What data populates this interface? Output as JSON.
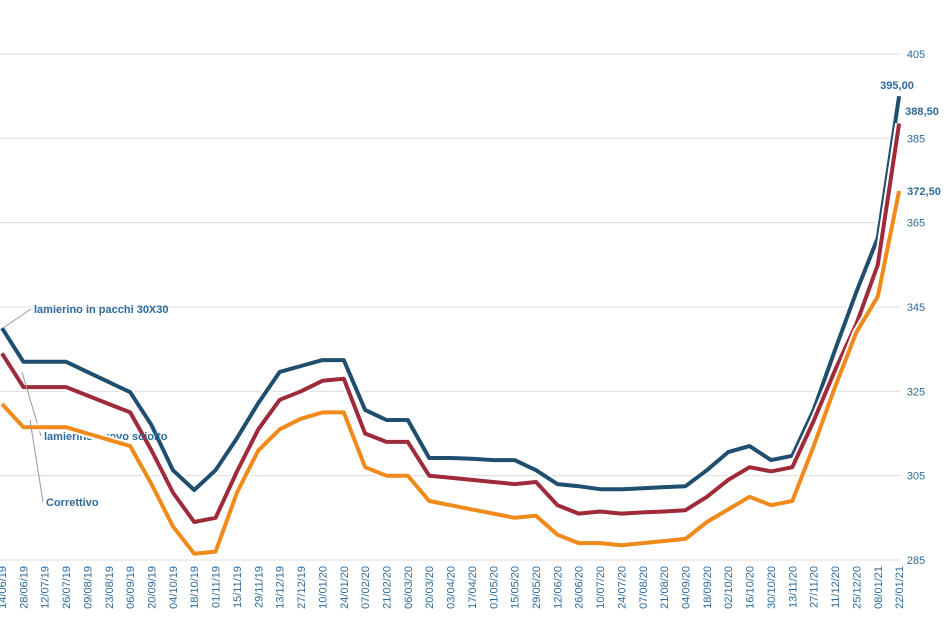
{
  "chart_data": {
    "type": "line",
    "categories": [
      "14/06/19",
      "28/06/19",
      "12/07/19",
      "26/07/19",
      "09/08/19",
      "23/08/19",
      "06/09/19",
      "20/09/19",
      "04/10/19",
      "18/10/19",
      "01/11/19",
      "15/11/19",
      "29/11/19",
      "13/12/19",
      "27/12/19",
      "10/01/20",
      "24/01/20",
      "07/02/20",
      "21/02/20",
      "06/03/20",
      "20/03/20",
      "03/04/20",
      "17/04/20",
      "01/05/20",
      "15/05/20",
      "29/05/20",
      "12/06/20",
      "26/06/20",
      "10/07/20",
      "24/07/20",
      "07/08/20",
      "21/08/20",
      "04/09/20",
      "18/09/20",
      "02/10/20",
      "16/10/20",
      "30/10/20",
      "13/11/20",
      "27/11/20",
      "11/12/20",
      "25/12/20",
      "08/01/21",
      "22/01/21"
    ],
    "series": [
      {
        "name": "lamierino in pacchi  30X30",
        "color": "#1f4e6e",
        "values": [
          340,
          332,
          332,
          332,
          329.6,
          327.2,
          324.8,
          317,
          306.3,
          301.6,
          306.3,
          313.9,
          322.2,
          329.6,
          331,
          332.4,
          332.4,
          320.6,
          318.2,
          318.2,
          309.2,
          309.2,
          309,
          308.7,
          308.7,
          306.3,
          303,
          302.5,
          301.8,
          301.8,
          302,
          302.3,
          302.5,
          306.3,
          310.6,
          312,
          308.7,
          309.7,
          320.6,
          334.8,
          348.6,
          361.4,
          395
        ],
        "value_labels": [
          null,
          null,
          null,
          null,
          null,
          null,
          null,
          null,
          null,
          null,
          null,
          null,
          null,
          null,
          null,
          null,
          null,
          null,
          null,
          null,
          null,
          null,
          null,
          null,
          null,
          null,
          null,
          null,
          null,
          null,
          null,
          null,
          null,
          null,
          null,
          null,
          null,
          null,
          null,
          null,
          null,
          null,
          "395,00"
        ]
      },
      {
        "name": "lamierino nuovo sciolto",
        "color": "#9e2a3a",
        "values": [
          334,
          326,
          326,
          326,
          324,
          322,
          320,
          311,
          301,
          294,
          295,
          306,
          316,
          323,
          325,
          327.5,
          328,
          315,
          313,
          313,
          305,
          304.5,
          304,
          303.5,
          303,
          303.5,
          298,
          296,
          296.5,
          296,
          296.3,
          296.5,
          296.8,
          300,
          304,
          307,
          306,
          307,
          318,
          330,
          341,
          355,
          388.5
        ],
        "value_labels": [
          null,
          null,
          null,
          null,
          null,
          null,
          null,
          null,
          null,
          null,
          null,
          null,
          null,
          null,
          null,
          null,
          null,
          null,
          null,
          null,
          null,
          null,
          null,
          null,
          null,
          null,
          null,
          null,
          null,
          null,
          null,
          null,
          null,
          null,
          null,
          null,
          null,
          null,
          null,
          null,
          null,
          null,
          "388,50"
        ]
      },
      {
        "name": "Correttivo",
        "color": "#f08a1a",
        "values": [
          322,
          316.5,
          316.5,
          316.5,
          315,
          313.5,
          312,
          303,
          293,
          286.5,
          287,
          301,
          311,
          316,
          318.5,
          320,
          320,
          307,
          305,
          305,
          299,
          298,
          297,
          296,
          295,
          295.5,
          291,
          289,
          289,
          288.5,
          289,
          289.5,
          290,
          294,
          297,
          300,
          298,
          299,
          312,
          326,
          339,
          347.5,
          372.5
        ],
        "value_labels": [
          null,
          null,
          null,
          null,
          null,
          null,
          null,
          null,
          null,
          null,
          null,
          null,
          null,
          null,
          null,
          null,
          null,
          null,
          null,
          null,
          null,
          null,
          null,
          null,
          null,
          null,
          null,
          null,
          null,
          null,
          null,
          null,
          null,
          null,
          null,
          null,
          null,
          null,
          null,
          null,
          null,
          null,
          "372,50"
        ]
      }
    ],
    "ylim": [
      285,
      405
    ],
    "yticks": [
      285,
      305,
      325,
      345,
      365,
      385,
      405
    ],
    "grid": true
  }
}
